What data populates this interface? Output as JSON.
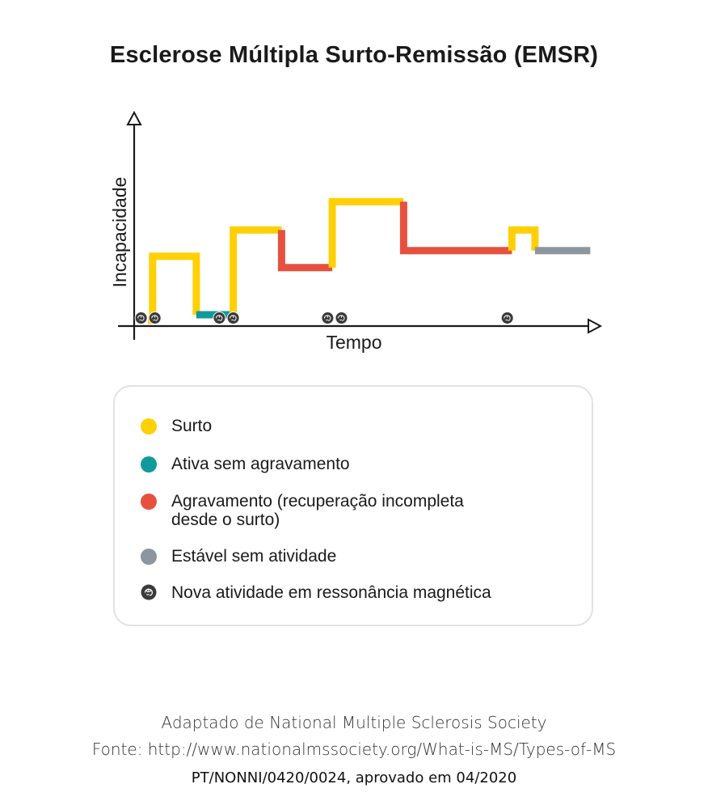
{
  "chart_data": {
    "type": "line",
    "title": "Esclerose Múltipla Surto-Remissão (EMSR)",
    "xlabel": "Tempo",
    "ylabel": "Incapacidade",
    "step_plot": true,
    "axis_ticks": false,
    "xlim": [
      0,
      100
    ],
    "ylim": [
      0,
      100
    ],
    "segments": [
      {
        "state": "Surto",
        "points": [
          [
            3,
            0
          ],
          [
            4,
            0
          ],
          [
            4,
            34
          ],
          [
            13.5,
            34
          ],
          [
            13.5,
            3
          ]
        ]
      },
      {
        "state": "Ativa sem agravamento",
        "points": [
          [
            13.5,
            3
          ],
          [
            21.5,
            3
          ]
        ]
      },
      {
        "state": "Surto",
        "points": [
          [
            21.5,
            3
          ],
          [
            21.5,
            48
          ],
          [
            32,
            48
          ]
        ]
      },
      {
        "state": "Agravamento",
        "points": [
          [
            32,
            48
          ],
          [
            32,
            28
          ],
          [
            43,
            28
          ]
        ]
      },
      {
        "state": "Surto",
        "points": [
          [
            43,
            28
          ],
          [
            43,
            63
          ],
          [
            58.5,
            63
          ]
        ]
      },
      {
        "state": "Agravamento",
        "points": [
          [
            58.5,
            63
          ],
          [
            58.5,
            37
          ],
          [
            82,
            37
          ]
        ]
      },
      {
        "state": "Surto",
        "points": [
          [
            82,
            37
          ],
          [
            82,
            48
          ],
          [
            87,
            48
          ],
          [
            87,
            37
          ]
        ]
      },
      {
        "state": "Estável sem atividade",
        "points": [
          [
            87,
            37
          ],
          [
            99,
            37
          ]
        ]
      }
    ],
    "mri_activity_x": [
      1.5,
      4.5,
      18.5,
      21.5,
      42,
      45,
      81
    ],
    "legend_position": "bottom"
  },
  "colors": {
    "surto": "#ffd006",
    "ativa": "#12999b",
    "agravamento": "#e6513f",
    "estavel": "#8b969e",
    "mri": "#3a3a3a",
    "axis": "#1a1a1a"
  },
  "legend": [
    {
      "label": "Surto",
      "color": "#ffd006"
    },
    {
      "label": "Ativa sem agravamento",
      "color": "#12999b"
    },
    {
      "label": "Agravamento (recuperação incompleta\ndesde o surto)",
      "color": "#e6513f"
    },
    {
      "label": "Estável sem atividade",
      "color": "#8b969e"
    },
    {
      "label": "Nova atividade em ressonância magnética",
      "icon": "brain-icon"
    }
  ],
  "footer": {
    "line1": "Adaptado de National Multiple Sclerosis Society",
    "line2": "Fonte: http://www.nationalmssociety.org/What-is-MS/Types-of-MS",
    "line3": "PT/NONNI/0420/0024, aprovado em 04/2020"
  }
}
